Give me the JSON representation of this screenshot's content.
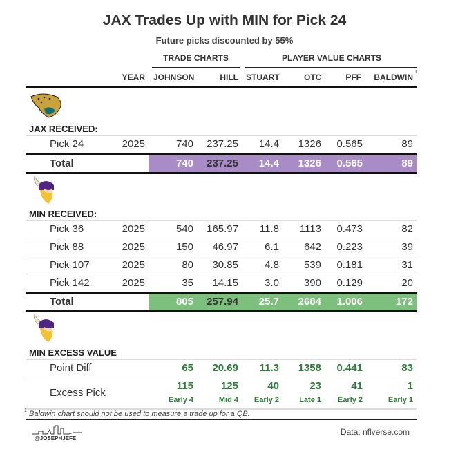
{
  "title": "JAX Trades Up with MIN for Pick 24",
  "subtitle": "Future picks discounted by 55%",
  "groups": {
    "trade": "TRADE CHARTS",
    "player": "PLAYER VALUE CHARTS"
  },
  "columns": {
    "year": "YEAR",
    "johnson": "JOHNSON",
    "hill": "HILL",
    "stuart": "STUART",
    "otc": "OTC",
    "pff": "PFF",
    "baldwin": "BALDWIN",
    "baldwin_note": "1"
  },
  "colors": {
    "jax_total_bg": "#a98bc6",
    "min_total_bg": "#7dbf7d",
    "excess_text": "#2e7d3a"
  },
  "jax": {
    "logo": "jaguars-logo",
    "label": "JAX RECEIVED:",
    "rows": [
      {
        "name": "Pick 24",
        "year": "2025",
        "johnson": "740",
        "hill": "237.25",
        "stuart": "14.4",
        "otc": "1326",
        "pff": "0.565",
        "baldwin": "89"
      }
    ],
    "total": {
      "name": "Total",
      "johnson": "740",
      "hill": "237.25",
      "stuart": "14.4",
      "otc": "1326",
      "pff": "0.565",
      "baldwin": "89"
    }
  },
  "min": {
    "logo": "vikings-logo",
    "label": "MIN RECEIVED:",
    "rows": [
      {
        "name": "Pick 36",
        "year": "2025",
        "johnson": "540",
        "hill": "165.97",
        "stuart": "11.8",
        "otc": "1113",
        "pff": "0.473",
        "baldwin": "82"
      },
      {
        "name": "Pick 88",
        "year": "2025",
        "johnson": "150",
        "hill": "46.97",
        "stuart": "6.1",
        "otc": "642",
        "pff": "0.223",
        "baldwin": "39"
      },
      {
        "name": "Pick 107",
        "year": "2025",
        "johnson": "80",
        "hill": "30.85",
        "stuart": "4.8",
        "otc": "539",
        "pff": "0.181",
        "baldwin": "31"
      },
      {
        "name": "Pick 142",
        "year": "2025",
        "johnson": "35",
        "hill": "14.15",
        "stuart": "3.0",
        "otc": "390",
        "pff": "0.129",
        "baldwin": "20"
      }
    ],
    "total": {
      "name": "Total",
      "johnson": "805",
      "hill": "257.94",
      "stuart": "25.7",
      "otc": "2684",
      "pff": "1.006",
      "baldwin": "172"
    }
  },
  "excess": {
    "logo": "vikings-logo",
    "label": "MIN EXCESS VALUE",
    "diff": {
      "name": "Point Diff",
      "johnson": "65",
      "hill": "20.69",
      "stuart": "11.3",
      "otc": "1358",
      "pff": "0.441",
      "baldwin": "83"
    },
    "pick": {
      "name": "Excess Pick",
      "johnson": "115",
      "hill": "125",
      "stuart": "40",
      "otc": "23",
      "pff": "41",
      "baldwin": "1"
    },
    "round": {
      "johnson": "Early 4",
      "hill": "Mid 4",
      "stuart": "Early 2",
      "otc": "Late 1",
      "pff": "Early 2",
      "baldwin": "Early 1"
    }
  },
  "footnote": {
    "mark": "1",
    "text": "Baldwin chart should not be used to measure a trade up for a QB."
  },
  "credit": "@JOSEPHJEFE",
  "source": "Data: nflverse.com"
}
